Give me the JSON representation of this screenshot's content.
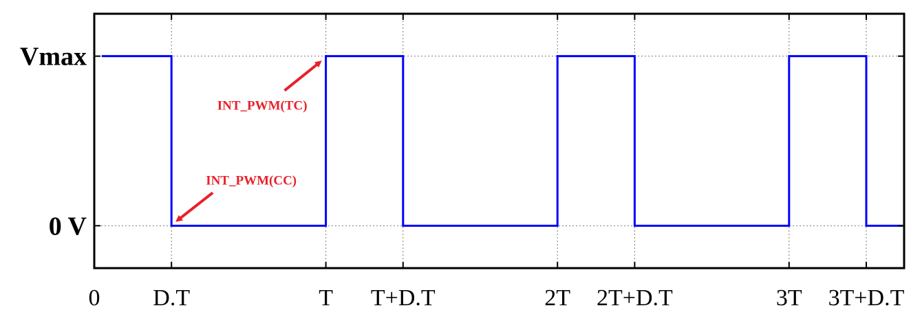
{
  "chart_data": {
    "type": "line",
    "title": "",
    "xlabel": "",
    "ylabel": "",
    "x_ticks": [
      {
        "value": 0,
        "label": "0"
      },
      {
        "value": 0.5,
        "label": "D.T"
      },
      {
        "value": 1.5,
        "label": "T"
      },
      {
        "value": 2.0,
        "label": "T+D.T"
      },
      {
        "value": 3.0,
        "label": "2T"
      },
      {
        "value": 3.5,
        "label": "2T+D.T"
      },
      {
        "value": 4.5,
        "label": "3T"
      },
      {
        "value": 5.0,
        "label": "3T+D.T"
      }
    ],
    "y_ticks": [
      {
        "value": 0,
        "label": "0 V"
      },
      {
        "value": 1,
        "label": "Vmax"
      }
    ],
    "xlim": [
      0,
      5.2
    ],
    "ylim": [
      -0.25,
      1.25
    ],
    "grid": true,
    "series": [
      {
        "color": "#0000ff",
        "step_points": [
          [
            0,
            1
          ],
          [
            0.5,
            1
          ],
          [
            0.5,
            0
          ],
          [
            1.5,
            0
          ],
          [
            1.5,
            1
          ],
          [
            2.0,
            1
          ],
          [
            2.0,
            0
          ],
          [
            3.0,
            0
          ],
          [
            3.0,
            1
          ],
          [
            3.5,
            1
          ],
          [
            3.5,
            0
          ],
          [
            4.5,
            0
          ],
          [
            4.5,
            1
          ],
          [
            5.0,
            1
          ],
          [
            5.0,
            0
          ],
          [
            5.2,
            0
          ]
        ]
      }
    ],
    "annotations": [
      {
        "text": "INT_PWM(TC)",
        "color": "#e8202a",
        "points_to": [
          1.5,
          1
        ]
      },
      {
        "text": "INT_PWM(CC)",
        "color": "#e8202a",
        "points_to": [
          0.5,
          0
        ]
      }
    ]
  }
}
